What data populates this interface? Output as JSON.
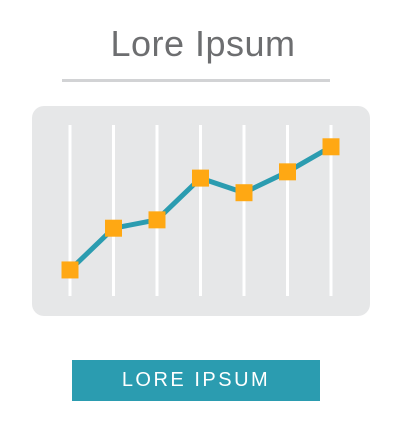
{
  "header": {
    "title": "Lore Ipsum"
  },
  "cta": {
    "label": "LORE IPSUM"
  },
  "colors": {
    "card_bg": "#e6e7e8",
    "gridline": "#ffffff",
    "line": "#2b9cb0",
    "marker": "#ffa813",
    "title": "#6d6e70",
    "button": "#2b9cb0"
  },
  "chart_data": {
    "type": "line",
    "categories": [
      "",
      "",
      "",
      "",
      "",
      "",
      ""
    ],
    "series": [
      {
        "values": [
          1.2,
          3.2,
          3.6,
          5.6,
          4.9,
          5.9,
          7.1
        ]
      }
    ],
    "ylim": [
      0,
      8
    ],
    "grid": true,
    "marker": "square",
    "title": "",
    "xlabel": "",
    "ylabel": ""
  }
}
